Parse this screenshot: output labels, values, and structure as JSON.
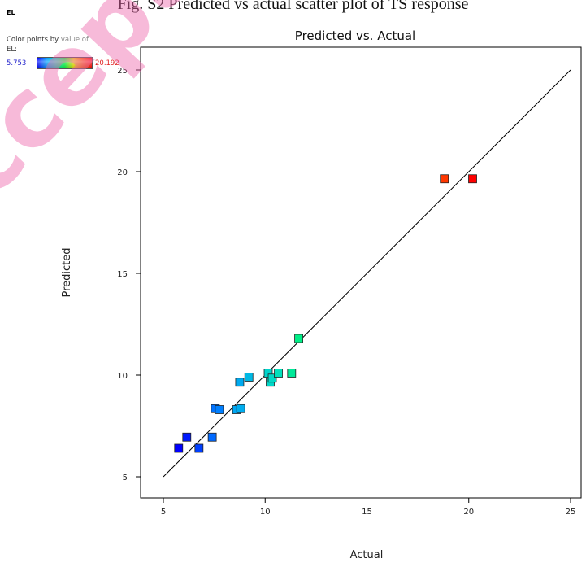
{
  "figure_caption": "Fig. S2 Predicted vs actual scatter plot of TS response",
  "legend": {
    "title": "EL",
    "desc_prefix": "Color points by",
    "desc_value": "value of",
    "desc_var": "EL:",
    "min_label": "5.753",
    "max_label": "20.192",
    "min_value": 5.753,
    "max_value": 20.192
  },
  "colors": {
    "watermark": "#ee66aa",
    "gradient": [
      "#0000ff",
      "#0099ff",
      "#00e0c0",
      "#00ff40",
      "#f0e000",
      "#ff6000",
      "#ff0000"
    ]
  },
  "chart_data": {
    "type": "scatter",
    "title": "Predicted vs. Actual",
    "xlabel": "Actual",
    "ylabel": "Predicted",
    "xlim": [
      5,
      25
    ],
    "ylim": [
      5,
      25
    ],
    "xticks": [
      "5",
      "10",
      "15",
      "20",
      "25"
    ],
    "yticks": [
      "5",
      "10",
      "15",
      "20",
      "25"
    ],
    "reference_line": [
      [
        5,
        5
      ],
      [
        25,
        25
      ]
    ],
    "grid": false,
    "x": [
      5.75,
      6.15,
      6.75,
      7.4,
      7.55,
      7.75,
      8.6,
      8.8,
      8.75,
      9.2,
      10.15,
      10.25,
      10.35,
      10.65,
      11.3,
      11.65,
      18.8,
      20.19
    ],
    "y": [
      6.4,
      6.95,
      6.4,
      6.95,
      8.35,
      8.3,
      8.3,
      8.35,
      9.65,
      9.9,
      10.1,
      9.65,
      9.85,
      10.1,
      10.1,
      11.8,
      19.65,
      19.65
    ]
  }
}
